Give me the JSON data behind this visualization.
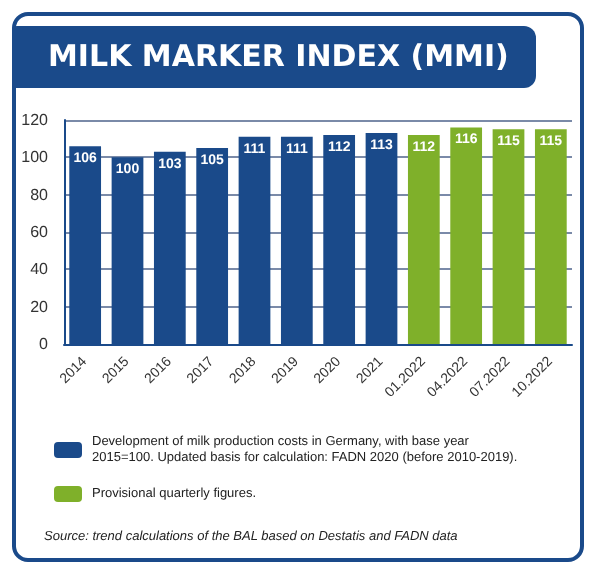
{
  "chart_data": {
    "type": "bar",
    "title": "MILK MARKER INDEX (MMI)",
    "categories": [
      "2014",
      "2015",
      "2016",
      "2017",
      "2018",
      "2019",
      "2020",
      "2021",
      "01.2022",
      "04.2022",
      "07.2022",
      "10.2022"
    ],
    "series": [
      {
        "name": "Development of milk production costs in Germany, with base year 2015=100. Updated basis for calculation: FADN 2020 (before 2010-2019).",
        "color": "#1a4a8a",
        "values": [
          106,
          100,
          103,
          105,
          111,
          111,
          112,
          113,
          null,
          null,
          null,
          null
        ]
      },
      {
        "name": "Provisional quarterly figures.",
        "color": "#7fb02a",
        "values": [
          null,
          null,
          null,
          null,
          null,
          null,
          null,
          null,
          112,
          116,
          115,
          115
        ]
      }
    ],
    "stacked": true,
    "ylim": [
      0,
      120
    ],
    "yticks": [
      0,
      20,
      40,
      60,
      80,
      100,
      120
    ],
    "grid": "y",
    "legend": "bottom",
    "data_labels": true,
    "annotations": [
      "Source: trend calculations of the BAL based on Destatis and FADN data"
    ]
  }
}
